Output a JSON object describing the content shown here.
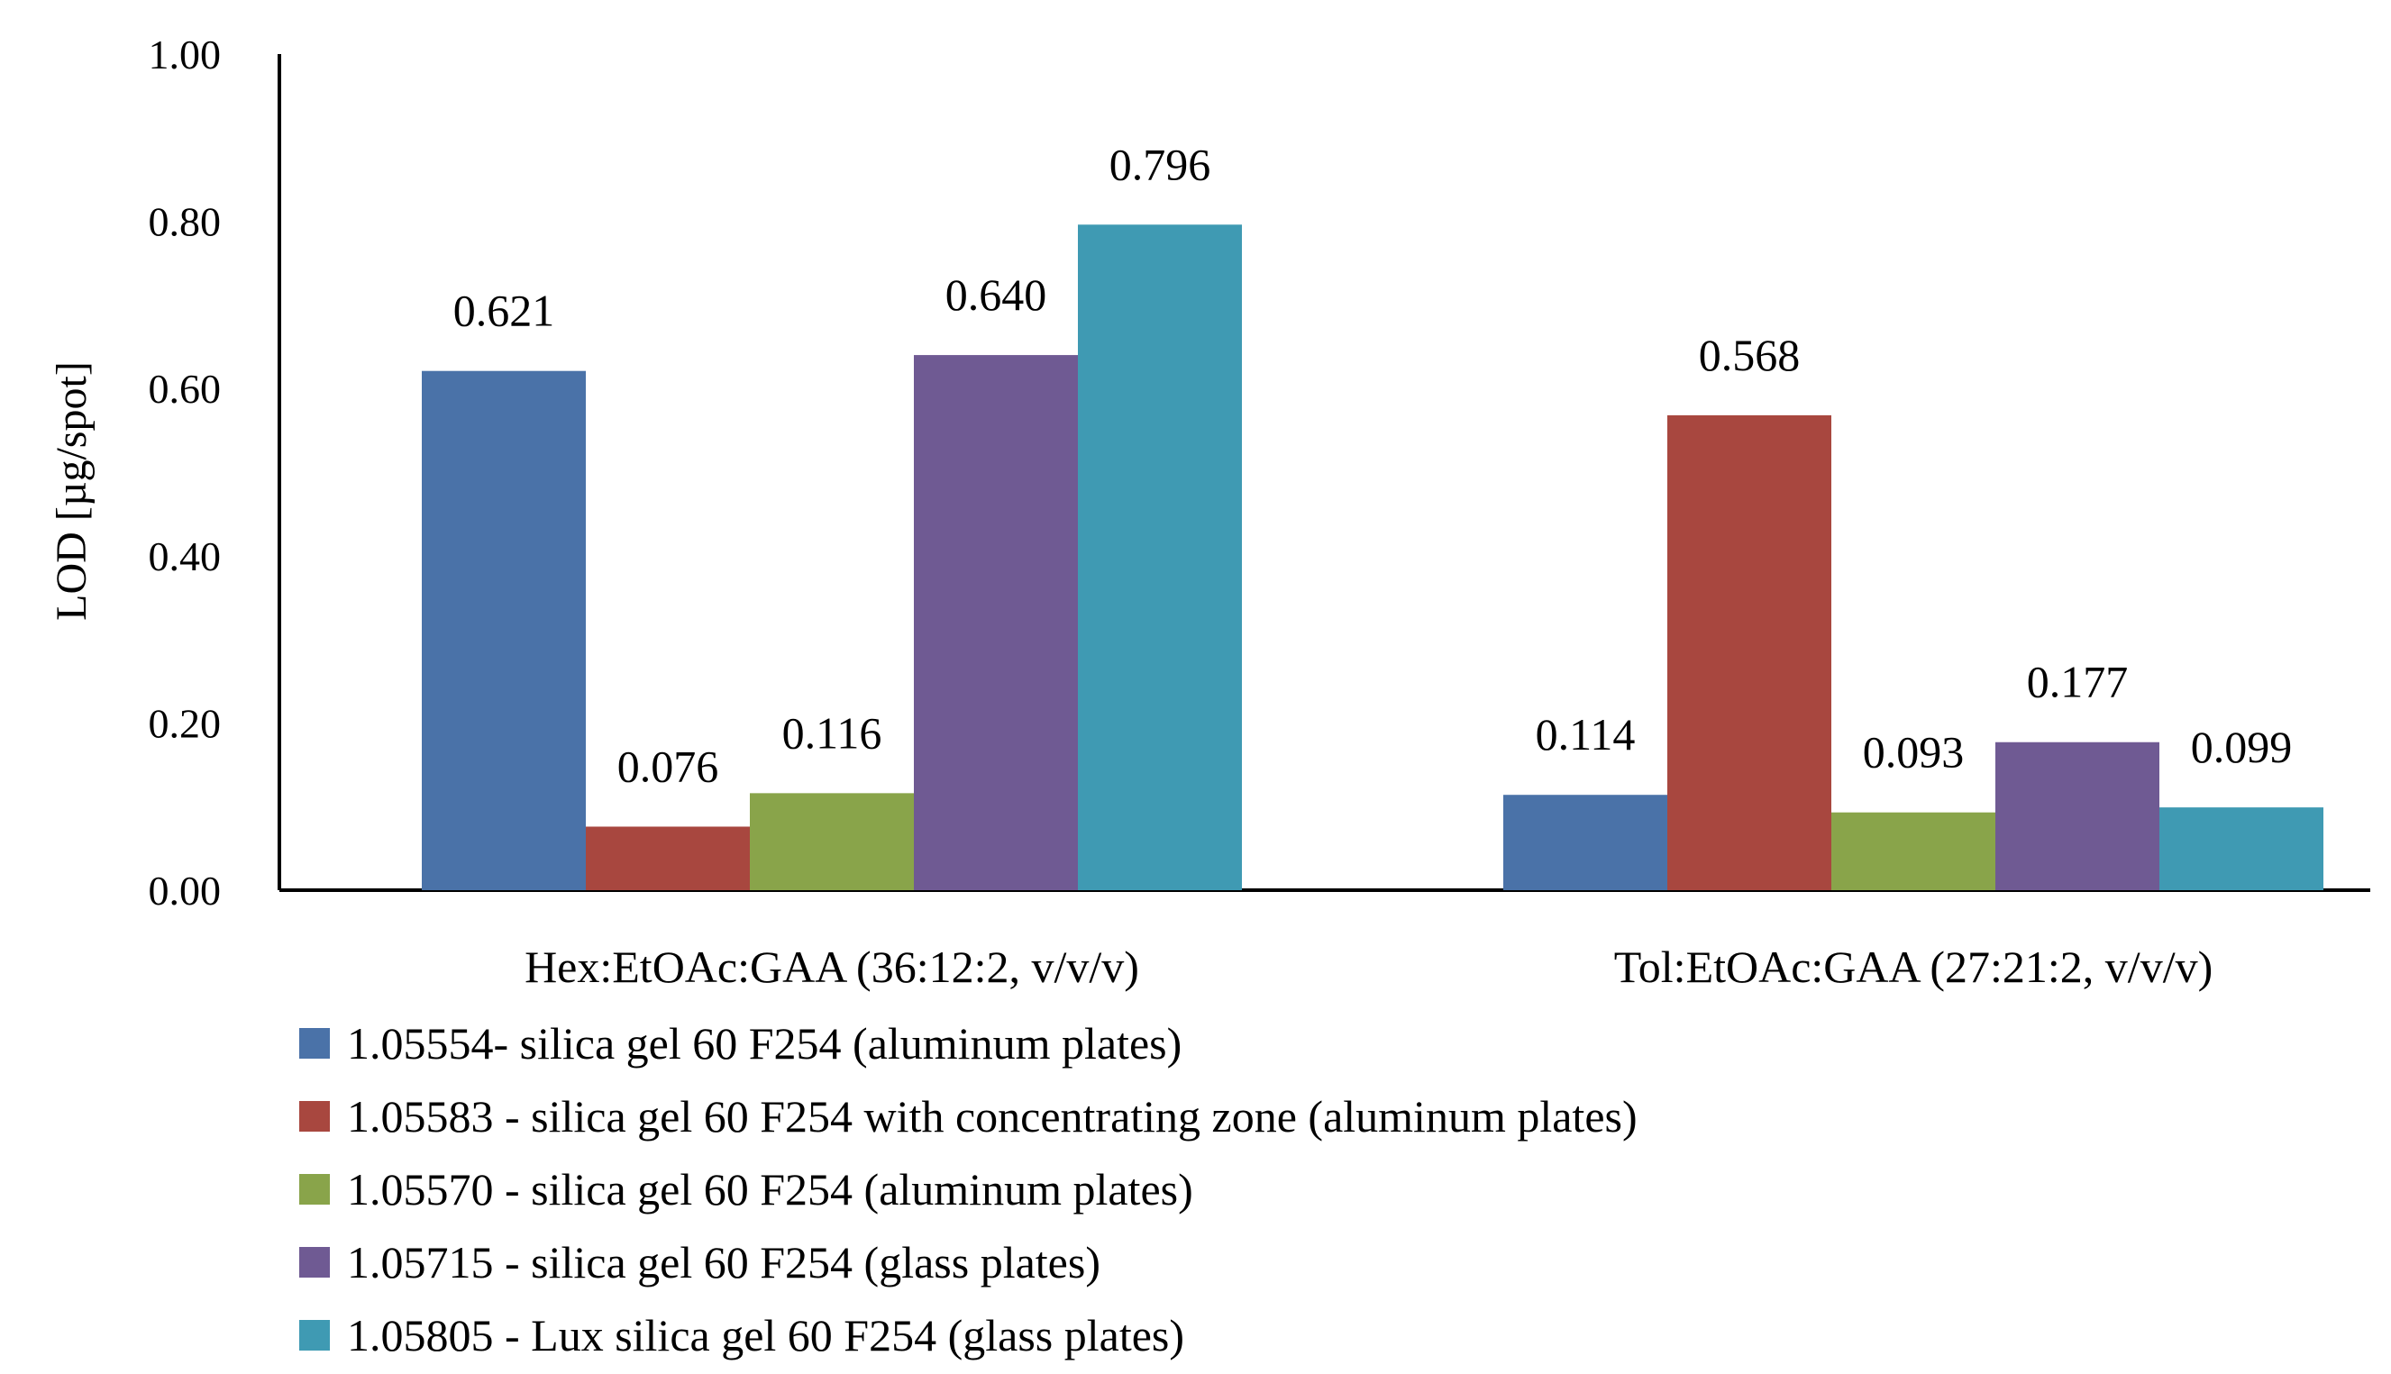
{
  "chart_data": {
    "type": "bar",
    "title": "",
    "xlabel": "",
    "ylabel": "LOD  [µg/spot]",
    "ylim": [
      0,
      1.0
    ],
    "yticks": [
      "0.00",
      "0.20",
      "0.40",
      "0.60",
      "0.80",
      "1.00"
    ],
    "ytick_values": [
      0,
      0.2,
      0.4,
      0.6,
      0.8,
      1.0
    ],
    "grid": false,
    "legend_position": "bottom-left",
    "categories": [
      "Hex:EtOAc:GAA  (36:12:2, v/v/v)",
      "Tol:EtOAc:GAA  (27:21:2, v/v/v)"
    ],
    "series": [
      {
        "name": "1.05554- silica gel 60 F254 (aluminum plates)",
        "color": "#4a72a8",
        "values": [
          0.621,
          0.114
        ],
        "labels": [
          "0.621",
          "0.114"
        ]
      },
      {
        "name": "1.05583 - silica gel  60 F254 with concentrating zone (aluminum plates)",
        "color": "#a8473f",
        "values": [
          0.076,
          0.568
        ],
        "labels": [
          "0.076",
          "0.568"
        ]
      },
      {
        "name": "1.05570 - silica gel  60 F254 (aluminum plates)",
        "color": "#89a44a",
        "values": [
          0.116,
          0.093
        ],
        "labels": [
          "0.116",
          "0.093"
        ]
      },
      {
        "name": "1.05715 - silica gel  60 F254 (glass plates)",
        "color": "#6f5a93",
        "values": [
          0.64,
          0.177
        ],
        "labels": [
          "0.640",
          "0.177"
        ]
      },
      {
        "name": "1.05805 - Lux silica gel  60 F254 (glass plates)",
        "color": "#3f9ab3",
        "values": [
          0.796,
          0.099
        ],
        "labels": [
          "0.796",
          "0.099"
        ]
      }
    ]
  }
}
